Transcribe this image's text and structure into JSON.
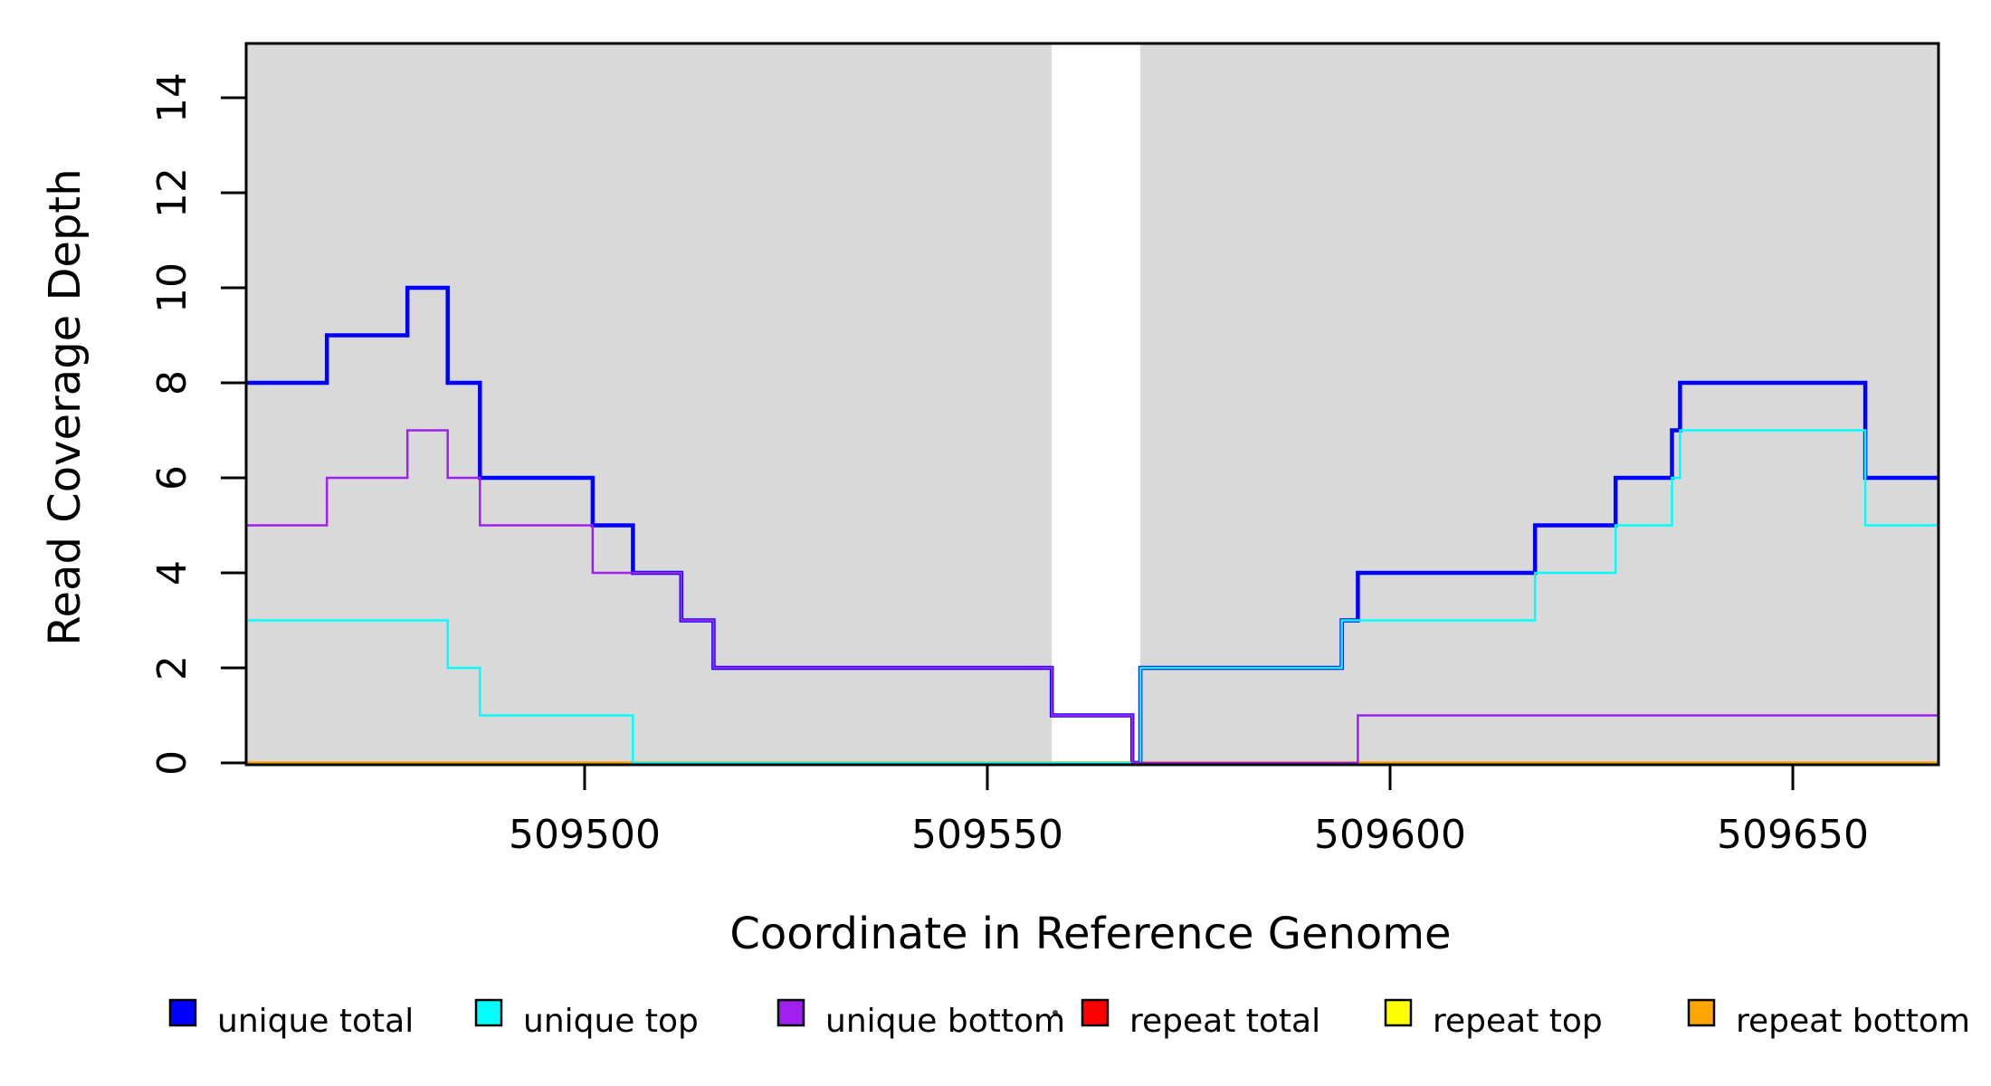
{
  "chart_data": {
    "type": "line",
    "subtype": "step-coverage-plot",
    "xlabel": "Coordinate in Reference Genome",
    "ylabel": "Read Coverage Depth",
    "x_ticks": [
      509500,
      509550,
      509600,
      509650
    ],
    "y_ticks": [
      0,
      2,
      4,
      6,
      8,
      10,
      12,
      14
    ],
    "xlim": [
      509458,
      509668
    ],
    "ylim": [
      0,
      15.14
    ],
    "grid": false,
    "plot_background": "#ffffff",
    "shaded_regions": [
      {
        "name": "left-alignable-region",
        "x0": 509458,
        "x1": 509558,
        "color": "#d9d9d9"
      },
      {
        "name": "right-alignable-region",
        "x0": 509569,
        "x1": 509668,
        "color": "#d9d9d9"
      }
    ],
    "series": [
      {
        "name": "repeat total",
        "color": "#ff0000",
        "width": 2.5,
        "steps": [
          [
            509458,
            0
          ]
        ]
      },
      {
        "name": "repeat top",
        "color": "#ffff00",
        "width": 2.5,
        "steps": [
          [
            509458,
            0
          ]
        ]
      },
      {
        "name": "repeat bottom",
        "color": "#ffa500",
        "width": 3.5,
        "steps": [
          [
            509458,
            0
          ]
        ]
      },
      {
        "name": "unique total",
        "color": "#0000ff",
        "width": 4.5,
        "steps": [
          [
            509458,
            8
          ],
          [
            509468,
            9
          ],
          [
            509478,
            10
          ],
          [
            509483,
            8
          ],
          [
            509487,
            6
          ],
          [
            509501,
            5
          ],
          [
            509506,
            4
          ],
          [
            509512,
            3
          ],
          [
            509516,
            2
          ],
          [
            509558,
            1
          ],
          [
            509568,
            0
          ],
          [
            509569,
            2
          ],
          [
            509594,
            3
          ],
          [
            509596,
            4
          ],
          [
            509618,
            5
          ],
          [
            509628,
            6
          ],
          [
            509635,
            7
          ],
          [
            509636,
            8
          ],
          [
            509659,
            6
          ]
        ]
      },
      {
        "name": "unique top",
        "color": "#00ffff",
        "width": 2.5,
        "steps": [
          [
            509458,
            3
          ],
          [
            509483,
            2
          ],
          [
            509487,
            1
          ],
          [
            509506,
            0
          ],
          [
            509569,
            2
          ],
          [
            509594,
            3
          ],
          [
            509618,
            4
          ],
          [
            509628,
            5
          ],
          [
            509635,
            6
          ],
          [
            509636,
            7
          ],
          [
            509659,
            5
          ]
        ]
      },
      {
        "name": "unique bottom",
        "color": "#a020f0",
        "width": 2.5,
        "steps": [
          [
            509458,
            5
          ],
          [
            509468,
            6
          ],
          [
            509478,
            7
          ],
          [
            509483,
            6
          ],
          [
            509487,
            5
          ],
          [
            509501,
            4
          ],
          [
            509512,
            3
          ],
          [
            509516,
            2
          ],
          [
            509558,
            1
          ],
          [
            509568,
            0
          ],
          [
            509596,
            1
          ]
        ]
      }
    ],
    "legend": {
      "position": "bottom",
      "items": [
        {
          "label": "unique total",
          "color": "#0000ff"
        },
        {
          "label": "unique top",
          "color": "#00ffff"
        },
        {
          "label": "unique bottom",
          "color": "#a020f0"
        },
        {
          "label": "repeat total",
          "color": "#ff0000"
        },
        {
          "label": "repeat top",
          "color": "#ffff00"
        },
        {
          "label": "repeat bottom",
          "color": "#ffa500"
        }
      ]
    }
  }
}
